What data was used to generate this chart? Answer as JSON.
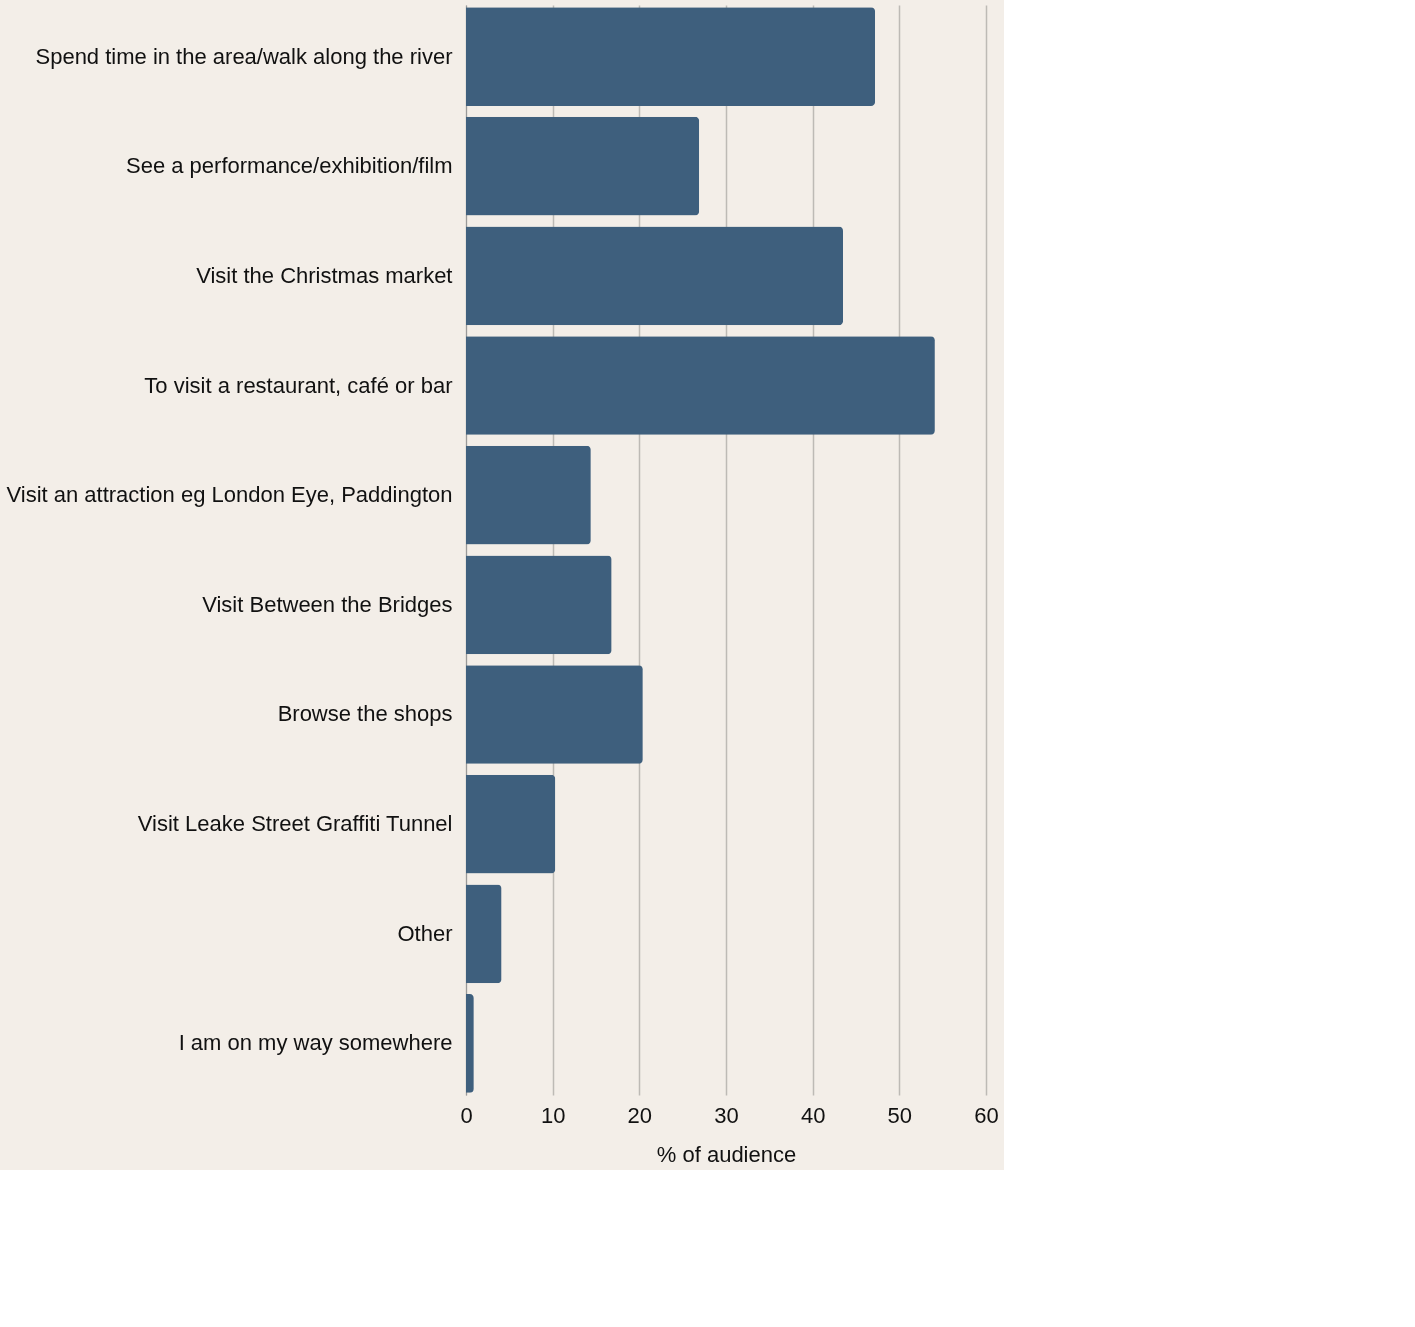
{
  "chart_data": {
    "type": "bar",
    "orientation": "horizontal",
    "xlabel": "% of audience",
    "categories": [
      "Spend time in the area/walk along the river",
      "See a performance/exhibition/film",
      "Visit the Christmas market",
      "To visit a restaurant, café or bar",
      "Visit an attraction eg London Eye, Paddington",
      "Visit Between the Bridges",
      "Browse the shops",
      "Visit Leake Street Graffiti Tunnel",
      "Other",
      "I am on my way somewhere"
    ],
    "values": [
      47.2,
      26.9,
      43.5,
      54.1,
      14.4,
      16.8,
      20.4,
      10.3,
      4.1,
      0.9
    ],
    "color": "#3e5f7d",
    "xlim": [
      0,
      60
    ],
    "xticks": [
      0,
      10,
      20,
      30,
      40,
      50,
      60
    ],
    "grid": "x"
  }
}
